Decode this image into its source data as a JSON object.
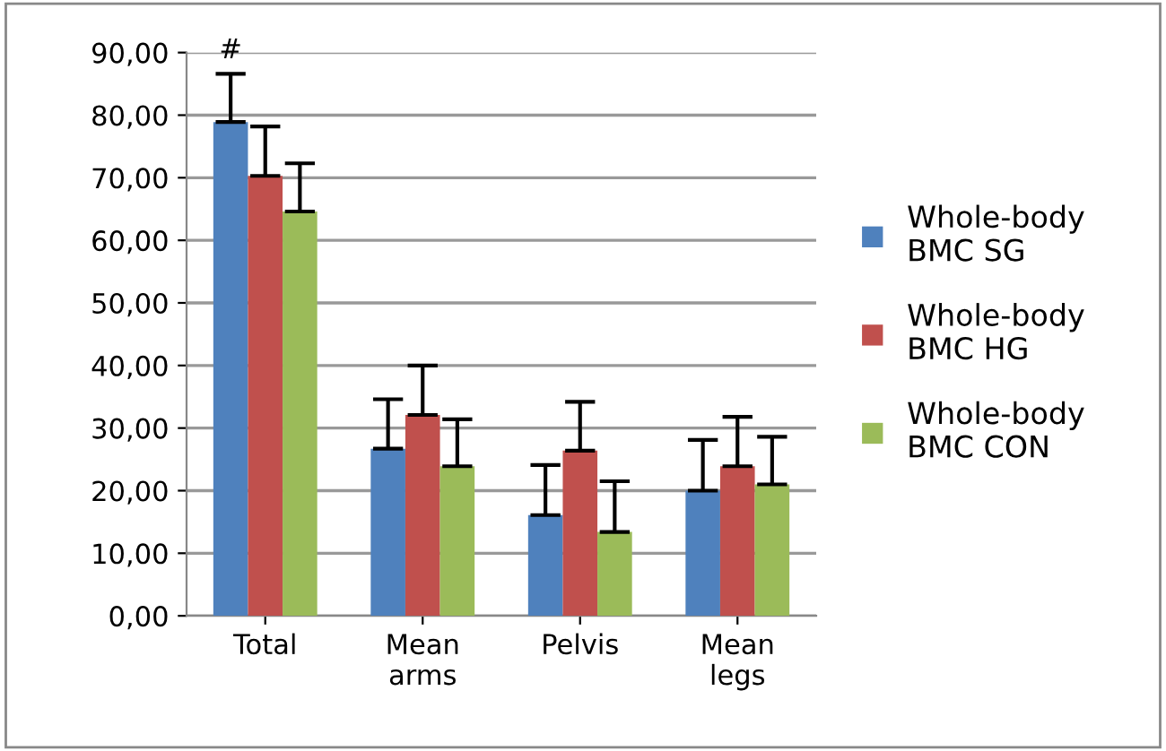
{
  "chart_data": {
    "type": "bar",
    "categories": [
      "Total",
      "Mean\narms",
      "Pelvis",
      "Mean\nlegs"
    ],
    "series": [
      {
        "name": "Whole-body\nBMC SG",
        "color": "#4f81bd",
        "values": [
          78.9,
          26.7,
          16.1,
          20.0
        ],
        "errors": [
          [
            78.9,
            86.6
          ],
          [
            26.7,
            34.6
          ],
          [
            16.1,
            24.1
          ],
          [
            20.0,
            28.1
          ]
        ]
      },
      {
        "name": "Whole-body\nBMC HG",
        "color": "#c0504d",
        "values": [
          70.3,
          32.1,
          26.4,
          23.9
        ],
        "errors": [
          [
            70.3,
            78.2
          ],
          [
            32.1,
            40.0
          ],
          [
            26.4,
            34.2
          ],
          [
            23.9,
            31.8
          ]
        ]
      },
      {
        "name": "Whole-body\nBMC CON",
        "color": "#9bbb59",
        "values": [
          64.6,
          23.9,
          13.4,
          21.0
        ],
        "errors": [
          [
            64.6,
            72.3
          ],
          [
            23.9,
            31.4
          ],
          [
            13.4,
            21.5
          ],
          [
            21.0,
            28.6
          ]
        ]
      }
    ],
    "ylim": [
      0,
      90
    ],
    "yticks": [
      {
        "value": 0,
        "label": "0,00"
      },
      {
        "value": 10,
        "label": "10,00"
      },
      {
        "value": 20,
        "label": "20,00"
      },
      {
        "value": 30,
        "label": "30,00"
      },
      {
        "value": 40,
        "label": "40,00"
      },
      {
        "value": 50,
        "label": "50,00"
      },
      {
        "value": 60,
        "label": "60,00"
      },
      {
        "value": 70,
        "label": "70,00"
      },
      {
        "value": 80,
        "label": "80,00"
      },
      {
        "value": 90,
        "label": "90,00"
      }
    ],
    "annotations": [
      "#"
    ],
    "grid": "y",
    "legend": "right"
  }
}
